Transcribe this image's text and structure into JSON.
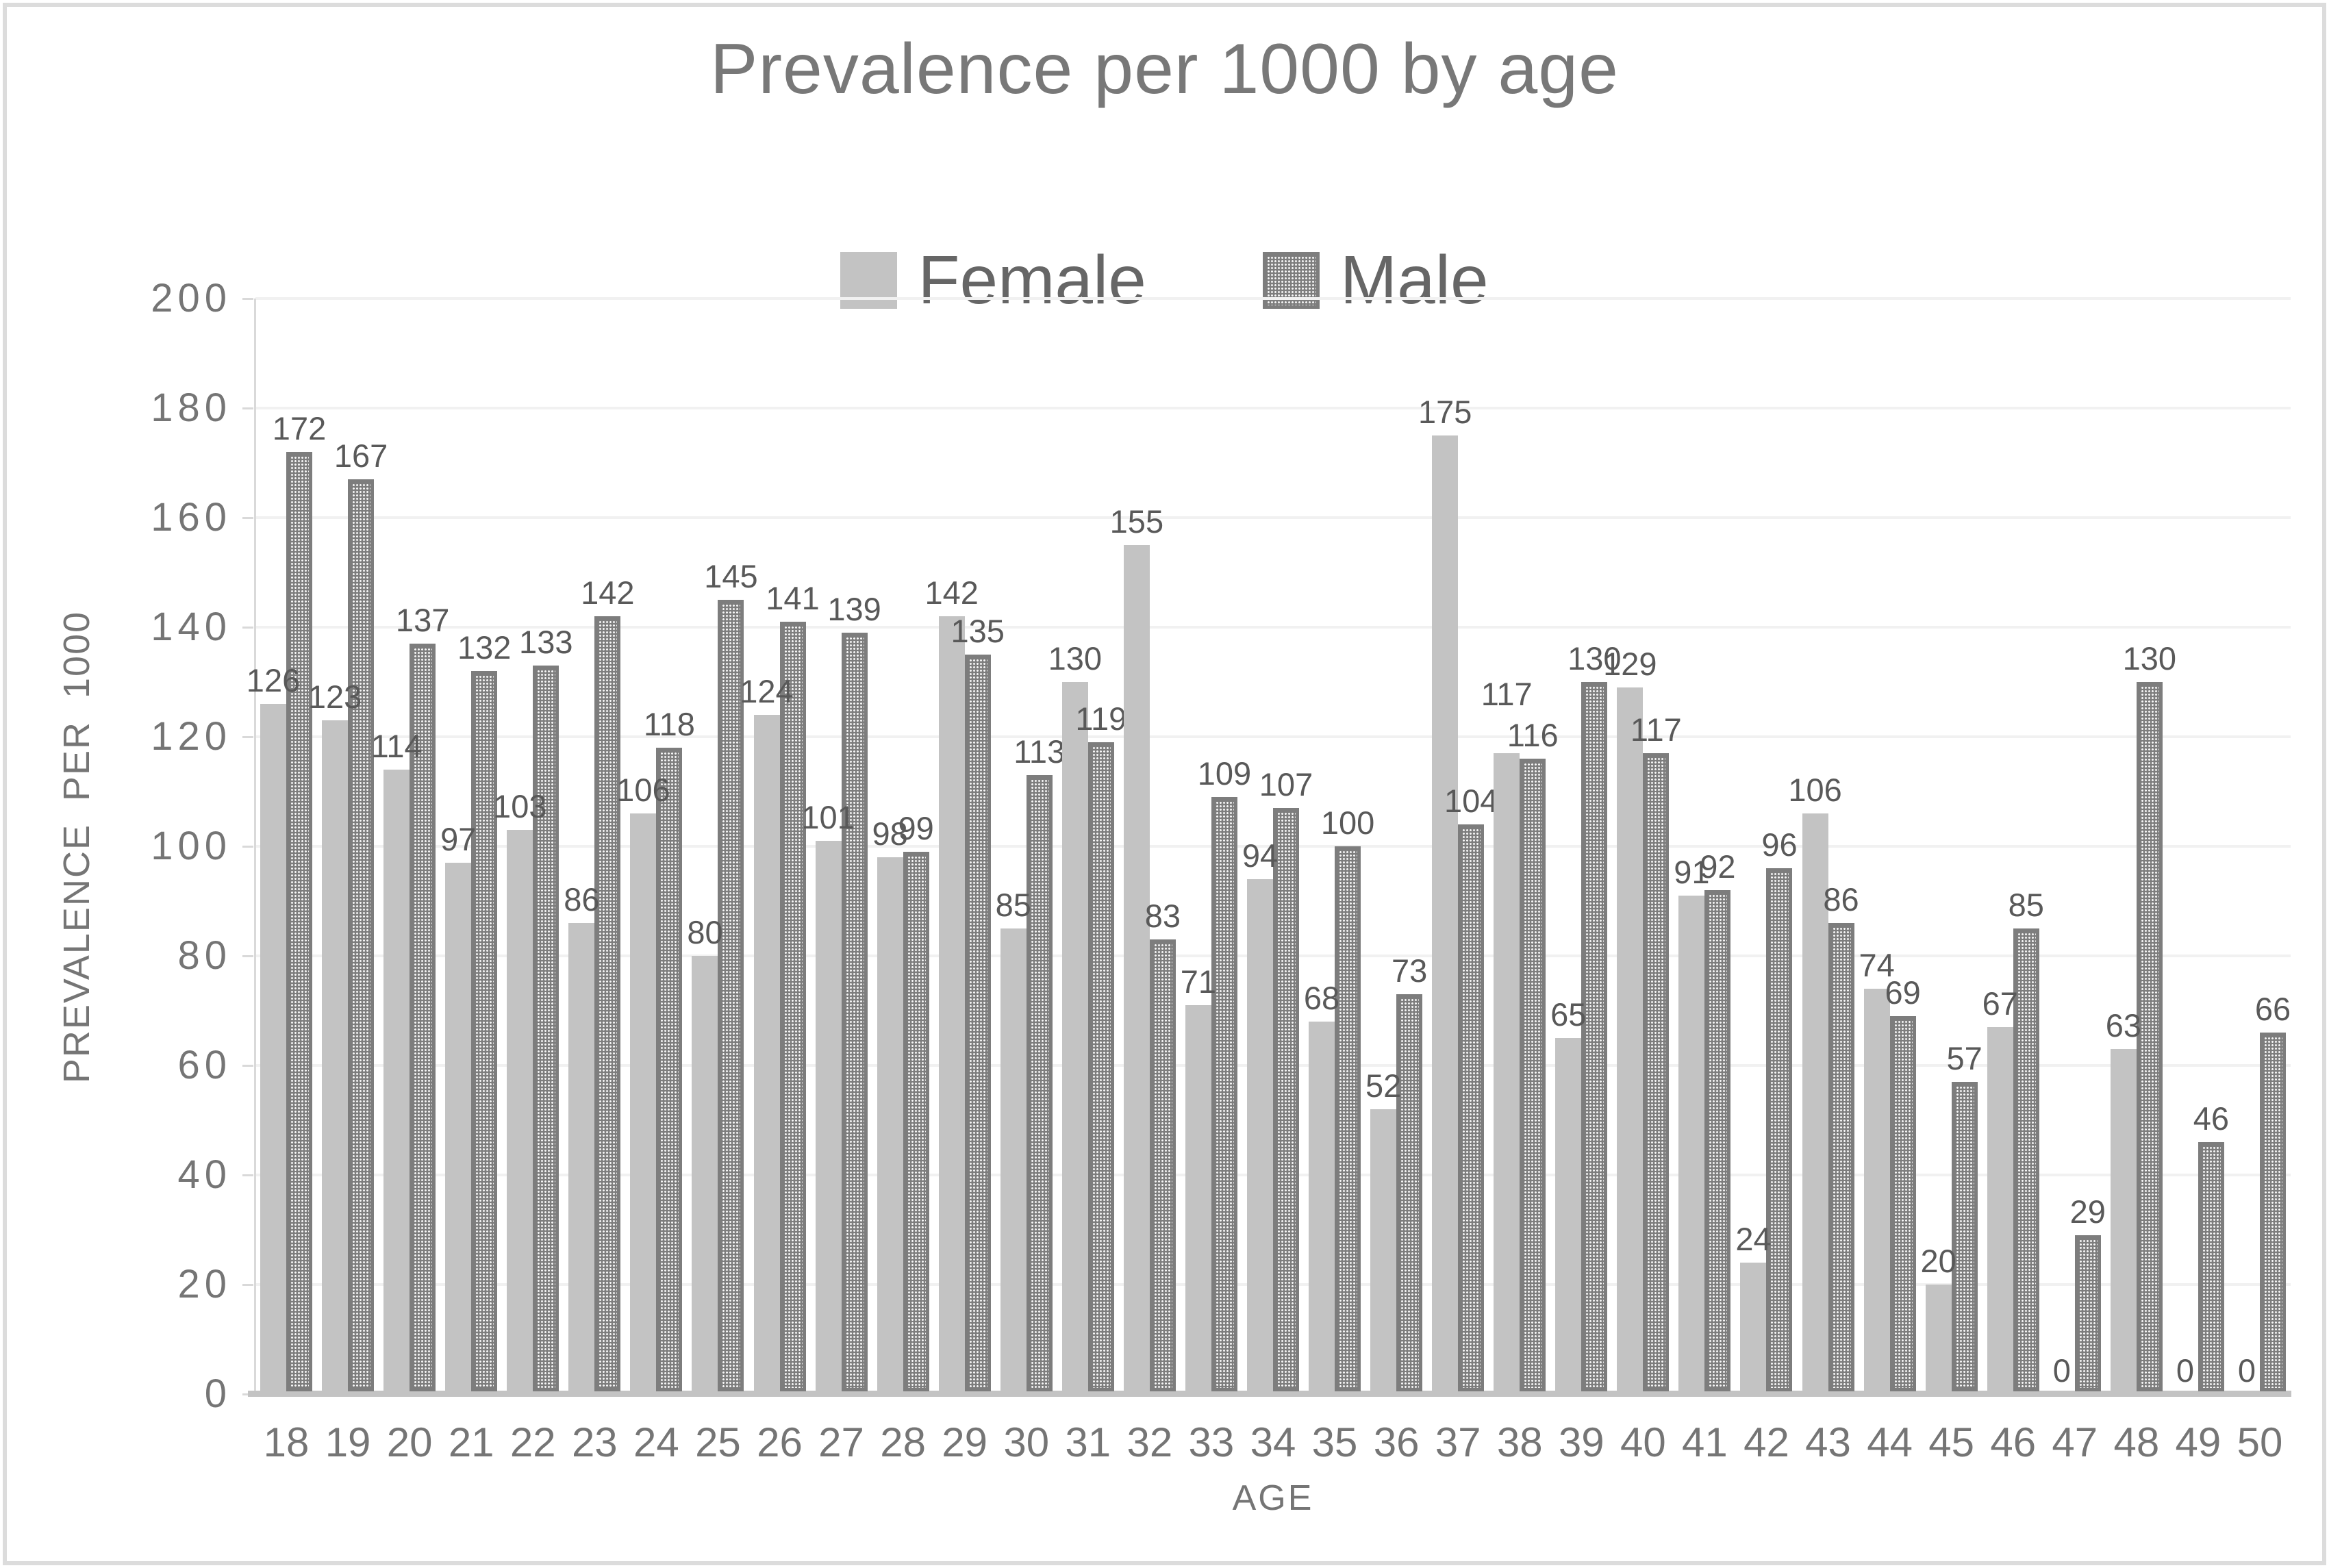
{
  "title": "Prevalence per 1000 by age",
  "axes": {
    "x_title": "AGE",
    "y_title": "PREVALENCE PER 1000"
  },
  "colors": {
    "female_bar": "#c3c3c3",
    "male_bar_base": "#7d7d7d",
    "male_bar_dots": "#ffffff",
    "gridline": "#f1f1f1",
    "axis_line": "#c3c3c3",
    "label_text": "#595959",
    "axis_text": "#757575",
    "title_text": "#787878"
  },
  "chart_data": {
    "type": "bar",
    "title": "Prevalence per 1000 by age",
    "xlabel": "AGE",
    "ylabel": "PREVALENCE PER 1000",
    "ylim": [
      0,
      200
    ],
    "y_tick_step": 20,
    "grid": true,
    "legend_position": "top-center-overlay",
    "categories": [
      18,
      19,
      20,
      21,
      22,
      23,
      24,
      25,
      26,
      27,
      28,
      29,
      30,
      31,
      32,
      33,
      34,
      35,
      36,
      37,
      38,
      39,
      40,
      41,
      42,
      43,
      44,
      45,
      46,
      47,
      48,
      49,
      50
    ],
    "series": [
      {
        "name": "Female",
        "values": [
          126,
          123,
          114,
          97,
          103,
          86,
          106,
          80,
          124,
          101,
          98,
          142,
          85,
          130,
          155,
          71,
          94,
          68,
          52,
          175,
          117,
          65,
          129,
          91,
          24,
          106,
          74,
          20,
          67,
          0,
          63,
          0,
          0
        ]
      },
      {
        "name": "Male",
        "values": [
          172,
          167,
          137,
          132,
          133,
          142,
          118,
          145,
          141,
          139,
          99,
          135,
          113,
          119,
          83,
          109,
          107,
          100,
          73,
          104,
          116,
          130,
          117,
          92,
          96,
          86,
          69,
          57,
          85,
          29,
          130,
          46,
          66
        ]
      }
    ]
  }
}
